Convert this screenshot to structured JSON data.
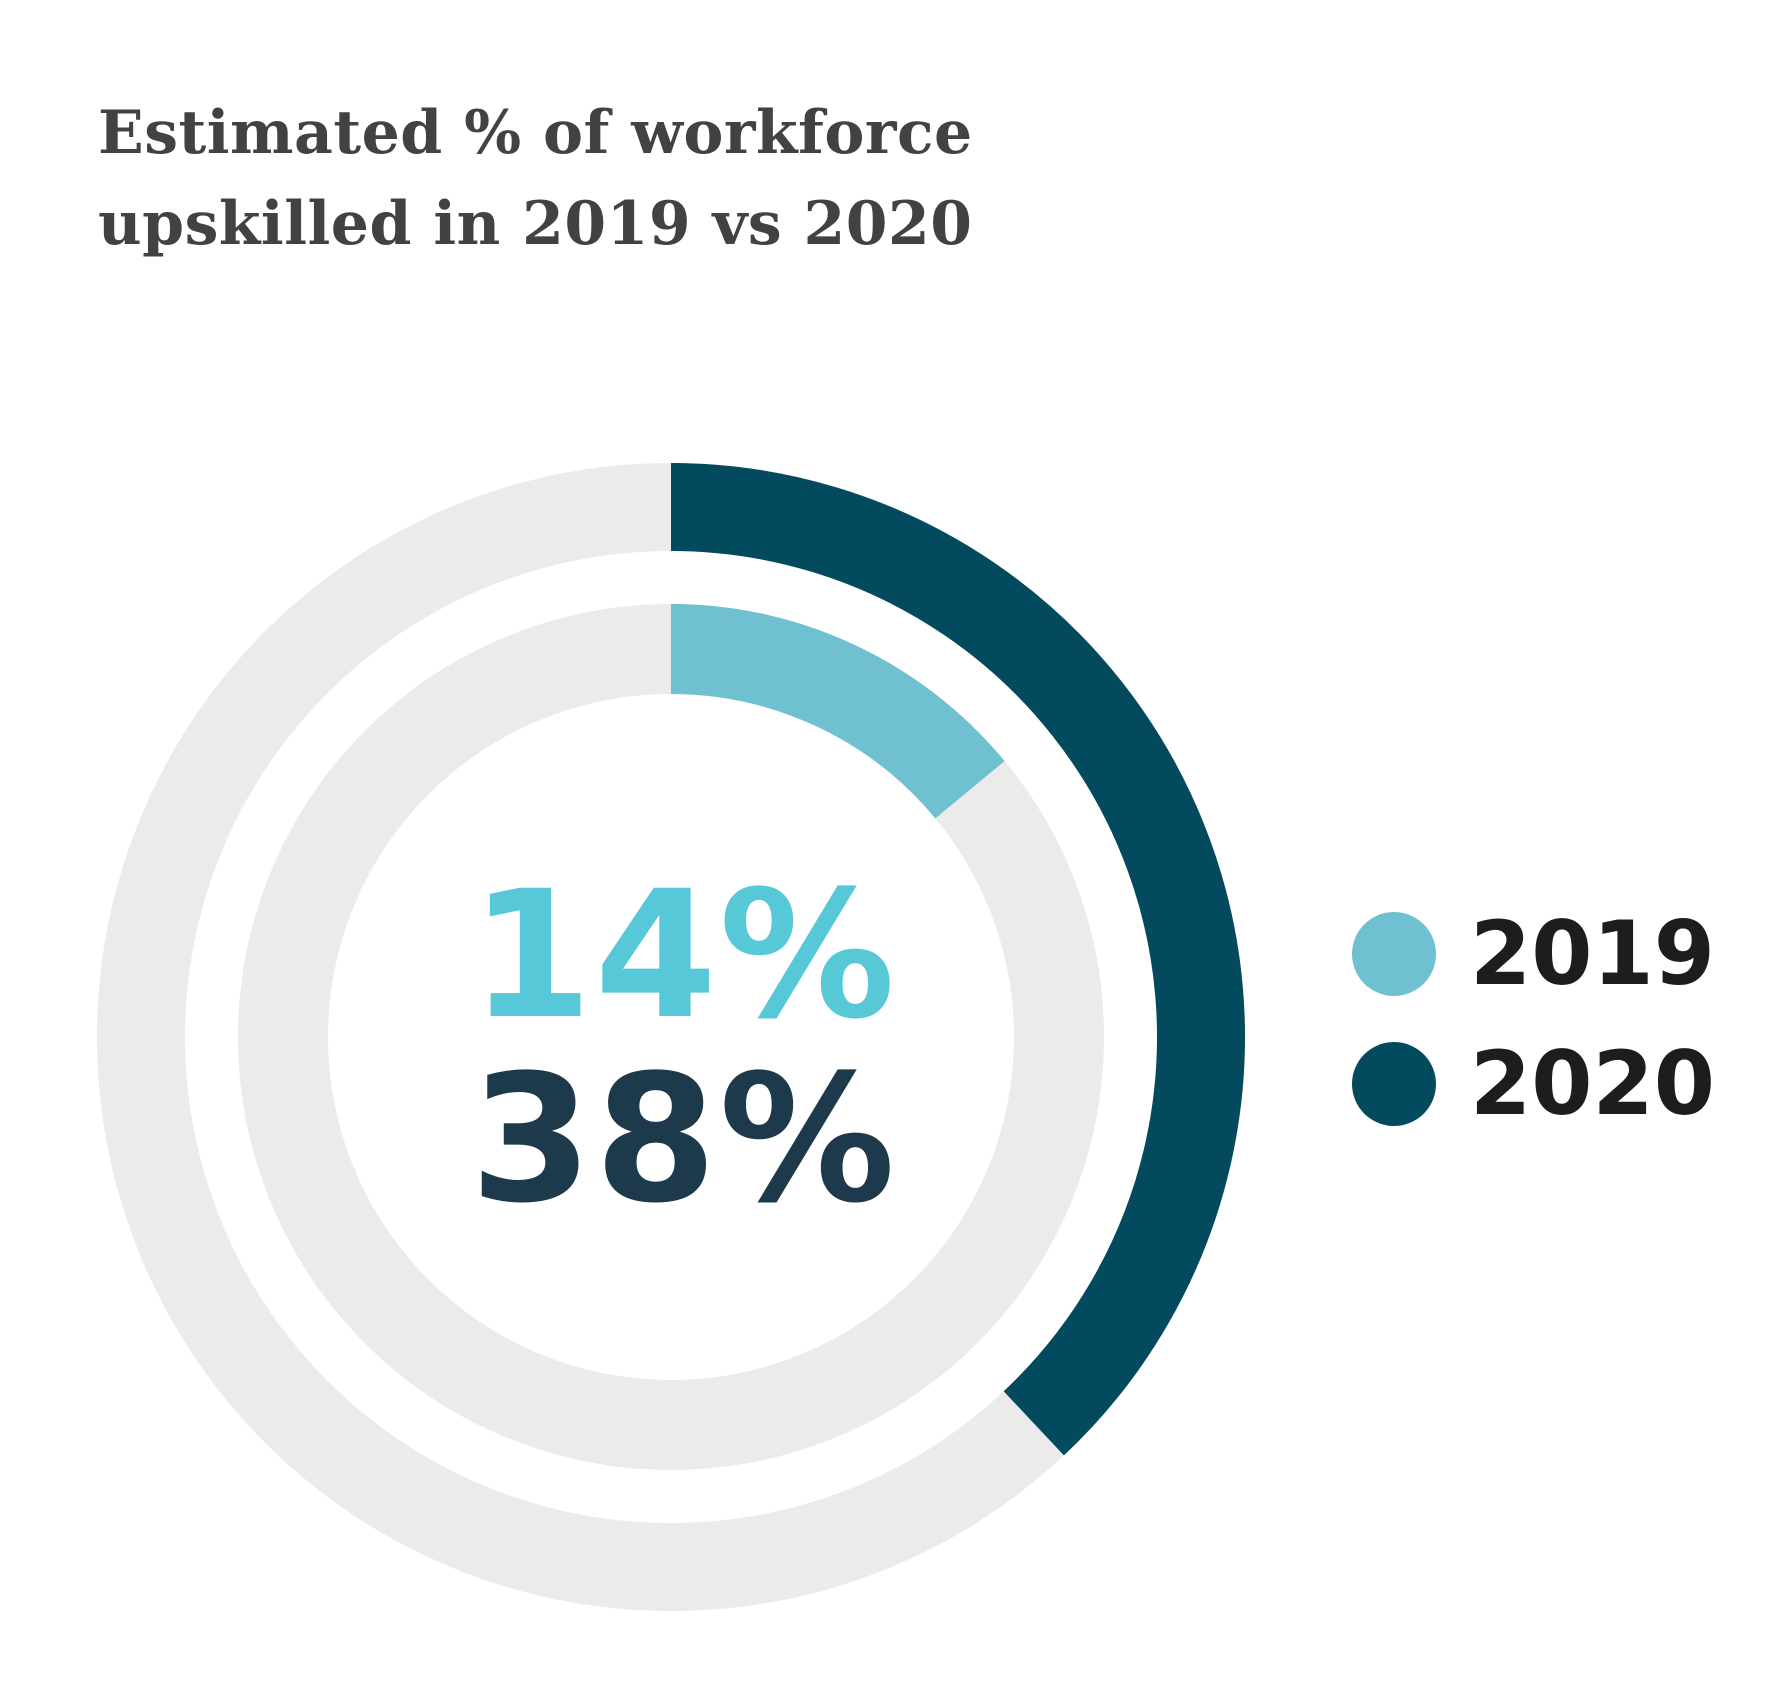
{
  "title_lines": [
    "Estimated % of workforce",
    "upskilled in 2019 vs 2020"
  ],
  "chart_data": {
    "type": "pie",
    "subtype": "nested-donut",
    "title": "Estimated % of workforce upskilled in 2019 vs 2020",
    "unit": "%",
    "series": [
      {
        "name": "2019",
        "value": 14,
        "label": "14%",
        "ring": "inner",
        "color": "#6fc0d1",
        "label_color": "#56c8d8"
      },
      {
        "name": "2020",
        "value": 38,
        "label": "38%",
        "ring": "outer",
        "color": "#034a5e",
        "label_color": "#1c3a4b"
      }
    ],
    "track_color": "#ebebeb",
    "legend": {
      "position": "right",
      "items": [
        "2019",
        "2020"
      ]
    }
  }
}
